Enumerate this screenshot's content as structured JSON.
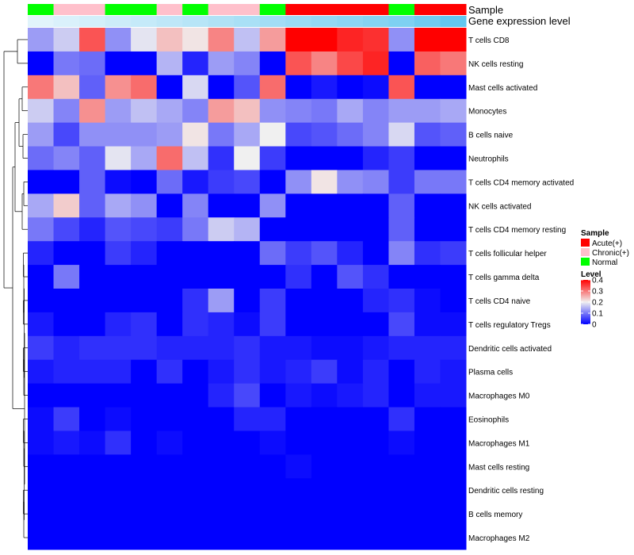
{
  "chart_data": {
    "type": "heatmap",
    "title": "",
    "annotation_tracks": {
      "sample_label": "Sample",
      "expression_label": "Gene expression level"
    },
    "samples": [
      "Normal",
      "Chronic(+)",
      "Chronic(+)",
      "Normal",
      "Normal",
      "Chronic(+)",
      "Normal",
      "Chronic(+)",
      "Chronic(+)",
      "Normal",
      "Acute(+)",
      "Acute(+)",
      "Acute(+)",
      "Acute(+)",
      "Normal",
      "Acute(+)",
      "Acute(+)"
    ],
    "expression_level": [
      0.05,
      0.1,
      0.15,
      0.2,
      0.25,
      0.3,
      0.35,
      0.4,
      0.45,
      0.5,
      0.55,
      0.6,
      0.65,
      0.7,
      0.75,
      0.85,
      0.95
    ],
    "rows": [
      "T cells CD8",
      "NK cells resting",
      "Mast cells activated",
      "Monocytes",
      "B cells naive",
      "Neutrophils",
      "T cells CD4 memory activated",
      "NK cells activated",
      "T cells CD4 memory resting",
      "T cells follicular helper",
      "T cells gamma delta",
      "T cells CD4 naive",
      "T cells regulatory  Tregs",
      "Dendritic cells activated",
      "Plasma cells",
      "Macrophages M0",
      "Eosinophils",
      "Macrophages M1",
      "Mast cells resting",
      "Dendritic cells resting",
      "B cells memory",
      "Macrophages M2"
    ],
    "values": [
      [
        0.13,
        0.17,
        0.33,
        0.12,
        0.19,
        0.24,
        0.21,
        0.29,
        0.16,
        0.27,
        0.4,
        0.4,
        0.37,
        0.36,
        0.12,
        0.4,
        0.4
      ],
      [
        0.0,
        0.1,
        0.09,
        0.0,
        0.0,
        0.15,
        0.03,
        0.13,
        0.11,
        0.0,
        0.33,
        0.29,
        0.34,
        0.37,
        0.0,
        0.32,
        0.3
      ],
      [
        0.3,
        0.24,
        0.08,
        0.28,
        0.31,
        0.0,
        0.18,
        0.0,
        0.07,
        0.31,
        0.0,
        0.02,
        0.0,
        0.01,
        0.33,
        0.0,
        0.0
      ],
      [
        0.17,
        0.11,
        0.28,
        0.13,
        0.16,
        0.14,
        0.11,
        0.27,
        0.24,
        0.12,
        0.11,
        0.1,
        0.14,
        0.11,
        0.13,
        0.13,
        0.14
      ],
      [
        0.13,
        0.06,
        0.12,
        0.12,
        0.12,
        0.13,
        0.21,
        0.1,
        0.14,
        0.2,
        0.06,
        0.07,
        0.09,
        0.11,
        0.18,
        0.07,
        0.08
      ],
      [
        0.09,
        0.11,
        0.08,
        0.19,
        0.14,
        0.31,
        0.16,
        0.04,
        0.2,
        0.05,
        0.0,
        0.0,
        0.0,
        0.03,
        0.05,
        0.0,
        0.0
      ],
      [
        0.0,
        0.0,
        0.08,
        0.01,
        0.0,
        0.09,
        0.02,
        0.05,
        0.06,
        0.0,
        0.12,
        0.21,
        0.12,
        0.11,
        0.05,
        0.1,
        0.1
      ],
      [
        0.14,
        0.23,
        0.08,
        0.14,
        0.12,
        0.0,
        0.11,
        0.0,
        0.0,
        0.12,
        0.0,
        0.0,
        0.0,
        0.0,
        0.08,
        0.0,
        0.0
      ],
      [
        0.1,
        0.06,
        0.03,
        0.07,
        0.06,
        0.05,
        0.1,
        0.17,
        0.15,
        0.0,
        0.0,
        0.0,
        0.0,
        0.0,
        0.08,
        0.0,
        0.0
      ],
      [
        0.03,
        0.0,
        0.0,
        0.05,
        0.03,
        0.0,
        0.0,
        0.0,
        0.0,
        0.09,
        0.05,
        0.07,
        0.03,
        0.0,
        0.11,
        0.04,
        0.05
      ],
      [
        0.0,
        0.1,
        0.0,
        0.0,
        0.0,
        0.0,
        0.0,
        0.0,
        0.0,
        0.0,
        0.04,
        0.0,
        0.07,
        0.04,
        0.0,
        0.0,
        0.0
      ],
      [
        0.0,
        0.0,
        0.0,
        0.0,
        0.0,
        0.0,
        0.04,
        0.13,
        0.0,
        0.05,
        0.0,
        0.0,
        0.0,
        0.03,
        0.04,
        0.01,
        0.0
      ],
      [
        0.02,
        0.0,
        0.0,
        0.03,
        0.04,
        0.0,
        0.04,
        0.03,
        0.01,
        0.05,
        0.0,
        0.0,
        0.0,
        0.0,
        0.06,
        0.01,
        0.01
      ],
      [
        0.05,
        0.03,
        0.04,
        0.04,
        0.04,
        0.03,
        0.03,
        0.03,
        0.04,
        0.02,
        0.02,
        0.01,
        0.01,
        0.02,
        0.03,
        0.03,
        0.03
      ],
      [
        0.02,
        0.03,
        0.03,
        0.03,
        0.0,
        0.04,
        0.0,
        0.02,
        0.04,
        0.02,
        0.03,
        0.05,
        0.01,
        0.03,
        0.0,
        0.03,
        0.02
      ],
      [
        0.0,
        0.0,
        0.0,
        0.0,
        0.0,
        0.0,
        0.0,
        0.03,
        0.06,
        0.0,
        0.02,
        0.01,
        0.02,
        0.03,
        0.0,
        0.02,
        0.02
      ],
      [
        0.01,
        0.05,
        0.0,
        0.01,
        0.0,
        0.0,
        0.0,
        0.0,
        0.03,
        0.03,
        0.0,
        0.0,
        0.0,
        0.0,
        0.04,
        0.0,
        0.0
      ],
      [
        0.01,
        0.02,
        0.01,
        0.04,
        0.0,
        0.01,
        0.0,
        0.0,
        0.0,
        0.01,
        0.0,
        0.0,
        0.0,
        0.0,
        0.01,
        0.0,
        0.0
      ],
      [
        0.0,
        0.0,
        0.0,
        0.0,
        0.0,
        0.0,
        0.0,
        0.0,
        0.0,
        0.0,
        0.01,
        0.0,
        0.0,
        0.0,
        0.0,
        0.0,
        0.0
      ],
      [
        0.0,
        0.0,
        0.0,
        0.0,
        0.0,
        0.0,
        0.0,
        0.0,
        0.0,
        0.0,
        0.0,
        0.0,
        0.0,
        0.0,
        0.0,
        0.0,
        0.0
      ],
      [
        0.0,
        0.0,
        0.0,
        0.0,
        0.0,
        0.0,
        0.0,
        0.0,
        0.0,
        0.0,
        0.0,
        0.0,
        0.0,
        0.0,
        0.0,
        0.0,
        0.0
      ],
      [
        0.0,
        0.0,
        0.0,
        0.0,
        0.0,
        0.0,
        0.0,
        0.0,
        0.0,
        0.0,
        0.0,
        0.0,
        0.0,
        0.0,
        0.0,
        0.0,
        0.0
      ]
    ],
    "value_range": [
      0,
      0.4
    ],
    "legend": {
      "sample_title": "Sample",
      "sample_entries": [
        {
          "label": "Acute(+)",
          "color": "#ff0000"
        },
        {
          "label": "Chronic(+)",
          "color": "#ffc0cb"
        },
        {
          "label": "Normal",
          "color": "#00ff00"
        }
      ],
      "level_title": "Level",
      "level_ticks": [
        {
          "value": 0.4,
          "label": "0.4"
        },
        {
          "value": 0.3,
          "label": "0.3"
        },
        {
          "value": 0.2,
          "label": "0.2"
        },
        {
          "value": 0.1,
          "label": "0.1"
        },
        {
          "value": 0,
          "label": "0"
        }
      ],
      "placement": "right"
    },
    "colors": {
      "low": "#0000ff",
      "mid": "#f0f0f0",
      "high": "#ff0000",
      "expression_light": "#e8f6fc",
      "expression_dark": "#5bc4ee"
    },
    "dendrogram": "rows"
  }
}
